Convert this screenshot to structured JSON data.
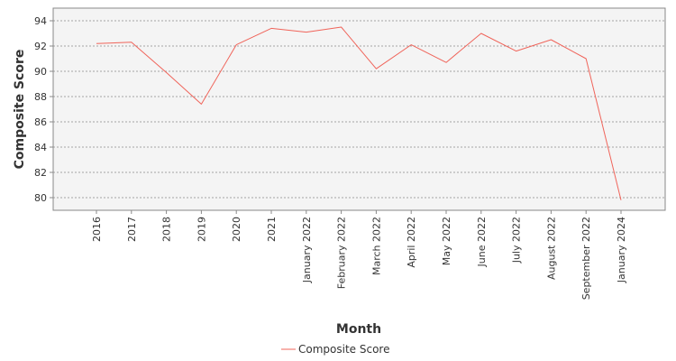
{
  "chart_data": {
    "type": "line",
    "categories": [
      "2016",
      "2017",
      "2018",
      "2019",
      "2020",
      "2021",
      "January 2022",
      "February 2022",
      "March 2022",
      "April 2022",
      "May 2022",
      "June 2022",
      "July 2022",
      "August 2022",
      "September 2022",
      "January 2024"
    ],
    "series": [
      {
        "name": "Composite Score",
        "values": [
          92.2,
          92.3,
          89.9,
          87.4,
          92.1,
          93.4,
          93.1,
          93.5,
          90.2,
          92.1,
          90.7,
          93.0,
          91.6,
          92.5,
          91.0,
          79.8
        ]
      }
    ],
    "title": "",
    "xlabel": "Month",
    "ylabel": "Composite Score",
    "ylim": [
      79.0,
      95.0
    ],
    "yticks": [
      80,
      82,
      84,
      86,
      88,
      90,
      92,
      94
    ],
    "grid": true,
    "legend": "bottom-center",
    "colors": {
      "series": "#f0645a",
      "plot_bg": "#f4f4f4",
      "grid": "#888888",
      "border": "#888888"
    }
  }
}
